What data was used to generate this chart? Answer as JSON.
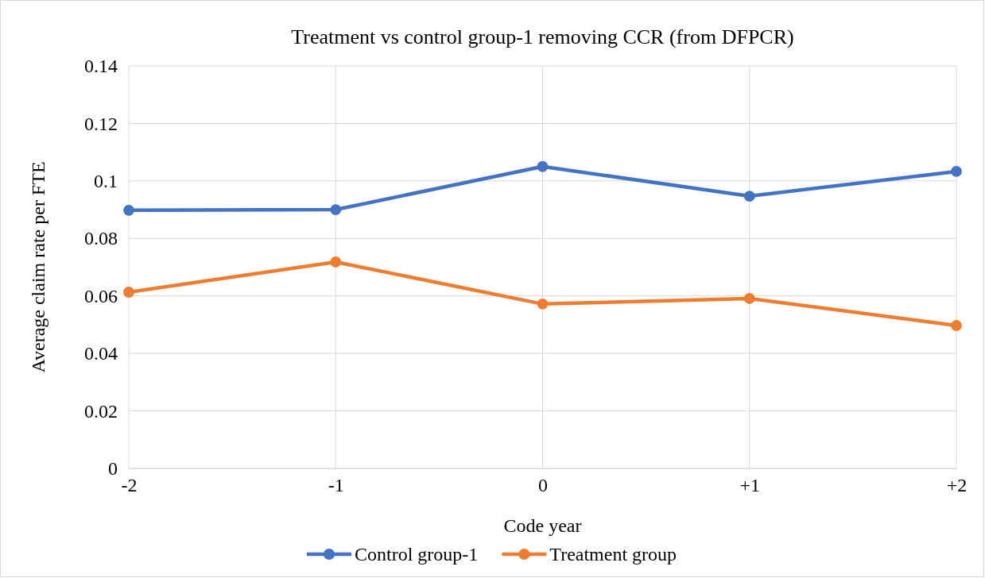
{
  "chart_data": {
    "type": "line",
    "title": "Treatment vs control group-1 removing CCR (from DFPCR)",
    "xlabel": "Code year",
    "ylabel": "Average claim rate per FTE",
    "categories": [
      "-2",
      "-1",
      "0",
      "+1",
      "+2"
    ],
    "series": [
      {
        "name": "Control group-1",
        "color": "#4472c4",
        "values": [
          0.0898,
          0.09,
          0.105,
          0.0947,
          0.1033
        ]
      },
      {
        "name": "Treatment group",
        "color": "#ed7d31",
        "values": [
          0.0613,
          0.0718,
          0.0572,
          0.0591,
          0.0497
        ]
      }
    ],
    "ylim": [
      0,
      0.14
    ],
    "yticks": [
      0,
      0.02,
      0.04,
      0.06,
      0.08,
      0.1,
      0.12,
      0.14
    ],
    "grid": true,
    "legend": "bottom",
    "marker": "circle",
    "line_style": "solid"
  }
}
